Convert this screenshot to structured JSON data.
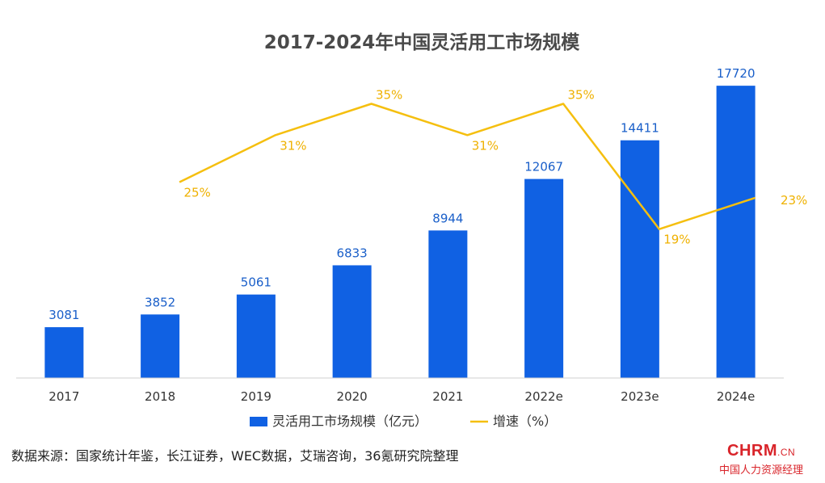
{
  "chart_data": {
    "type": "bar",
    "title": "2017-2024年中国灵活用工市场规模",
    "categories": [
      "2017",
      "2018",
      "2019",
      "2020",
      "2021",
      "2022e",
      "2023e",
      "2024e"
    ],
    "series": [
      {
        "name": "灵活用工市场规模（亿元）",
        "type": "bar",
        "values": [
          3081,
          3852,
          5061,
          6833,
          8944,
          12067,
          14411,
          17720
        ],
        "color": "#1061e3"
      },
      {
        "name": "增速（%）",
        "type": "line",
        "values": [
          null,
          25,
          31,
          35,
          31,
          35,
          19,
          23
        ],
        "labels": [
          "",
          "25%",
          "31%",
          "35%",
          "31%",
          "35%",
          "19%",
          "23%"
        ],
        "color": "#f5bf0f"
      }
    ],
    "legend_position": "bottom",
    "grid": false,
    "ylim": [
      0,
      19000
    ],
    "y2lim": [
      0,
      40
    ]
  },
  "source": "数据来源：国家统计年鉴，长江证券，WEC数据，艾瑞咨询，36氪研究院整理",
  "logo": {
    "brand": "CHRM",
    "suffix": ".CN",
    "subtitle": "中国人力资源经理"
  }
}
